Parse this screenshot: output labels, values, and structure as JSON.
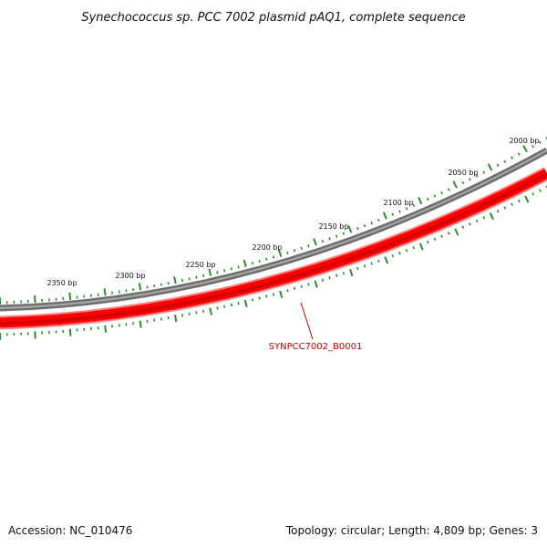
{
  "title": "Synechococcus sp. PCC 7002 plasmid pAQ1, complete sequence",
  "footer": {
    "accession": "Accession: NC_010476",
    "summary": "Topology: circular; Length: 4,809 bp; Genes: 3"
  },
  "colors": {
    "backbone": "#8a8a8a",
    "gene": "#ff0000",
    "gene_dark": "#e00000",
    "gene_light": "#ff8080",
    "tick": "#2e8b2e",
    "gene_label": "#cc0000",
    "text": "#111111"
  },
  "ruler": {
    "labels": [
      "2000 bp",
      "2050 bp",
      "2100 bp",
      "2150 bp",
      "2200 bp",
      "2250 bp",
      "2300 bp",
      "2350 bp"
    ]
  },
  "genes": [
    {
      "label": "SYNPCC7002_B0001"
    }
  ]
}
